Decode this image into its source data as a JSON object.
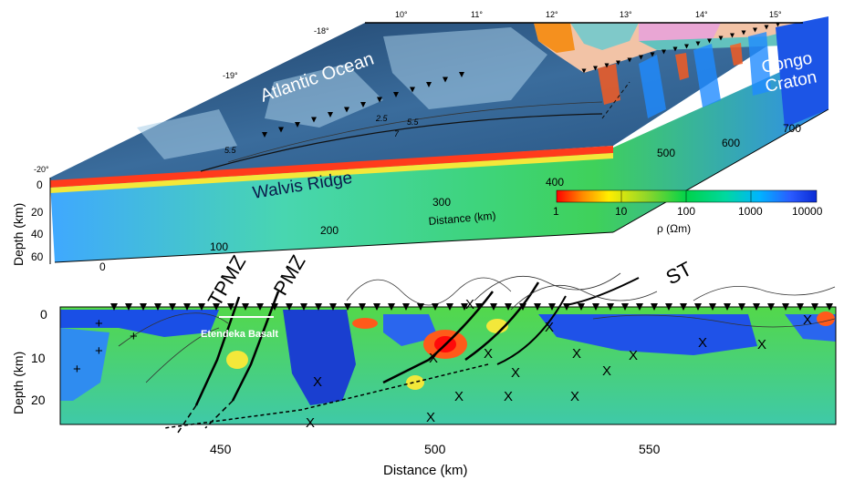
{
  "top_panel": {
    "ocean_label": "Atlantic Ocean",
    "ridge_label": "Walvis Ridge",
    "craton_label_1": "Congo",
    "craton_label_2": "Craton",
    "latitudes": [
      "-18°",
      "-19°",
      "-20°"
    ],
    "longitudes": [
      "10°",
      "11°",
      "12°",
      "13°",
      "14°",
      "15°"
    ],
    "distance_title": "Distance (km)",
    "distance_ticks": [
      "0",
      "100",
      "200",
      "300",
      "400",
      "500",
      "600",
      "700"
    ],
    "depth_title": "Depth (km)",
    "depth_ticks": [
      "0",
      "20",
      "40",
      "60"
    ],
    "contour_labels": [
      "2.5",
      "5.5",
      "7",
      "5.5"
    ]
  },
  "colorbar": {
    "title": "ρ  (Ωm)",
    "ticks": [
      "1",
      "10",
      "100",
      "1000",
      "10000"
    ],
    "colors": [
      "#ff0000",
      "#ff8a00",
      "#ffee00",
      "#8cd62b",
      "#00d24a",
      "#00d8a0",
      "#00b4ff",
      "#2a5bff",
      "#0a2bd4"
    ]
  },
  "bottom_panel": {
    "zone_labels": [
      "TPMZ",
      "PMZ",
      "ST"
    ],
    "basalt_label": "Etendeka Basalt",
    "depth_title": "Depth (km)",
    "depth_ticks": [
      "0",
      "10",
      "20"
    ],
    "distance_title": "Distance (km)",
    "distance_ticks": [
      "450",
      "500",
      "550"
    ]
  }
}
